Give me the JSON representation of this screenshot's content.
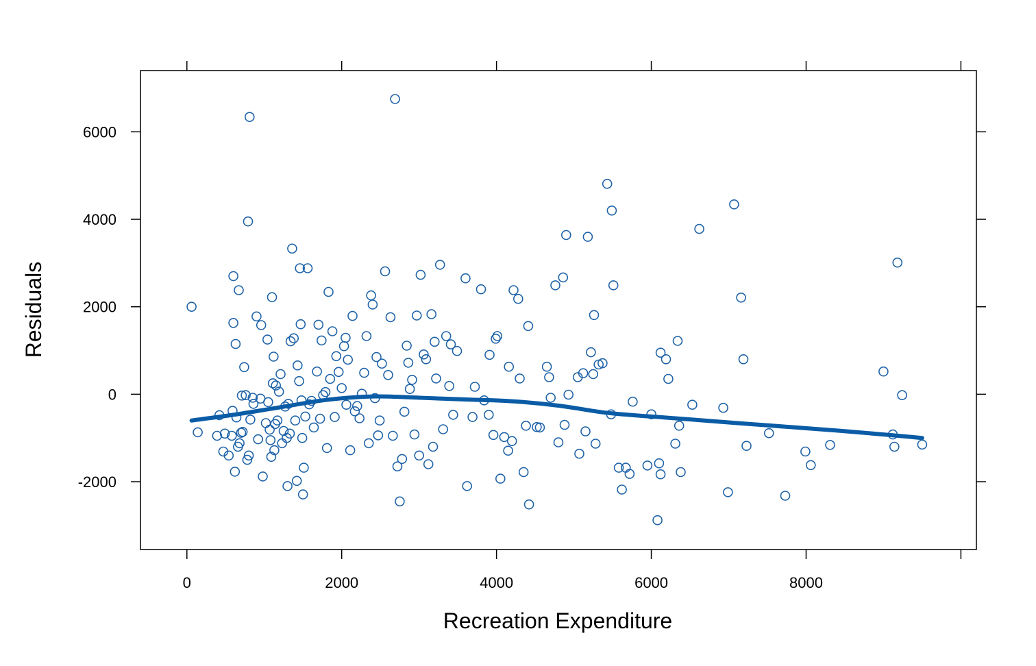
{
  "chart_data": {
    "type": "scatter",
    "title": "",
    "xlabel": "Recreation Expenditure",
    "ylabel": "Residuals",
    "xlim": [
      -600,
      10200
    ],
    "ylim": [
      -3550,
      7400
    ],
    "x_ticks": [
      0,
      2000,
      4000,
      6000,
      8000
    ],
    "x_tick_labels": [
      "0",
      "2000",
      "4000",
      "6000",
      "8000"
    ],
    "y_ticks": [
      -2000,
      0,
      2000,
      4000,
      6000
    ],
    "y_tick_labels": [
      "-2000",
      "0",
      "2000",
      "4000",
      "6000"
    ],
    "grid": false,
    "marker_color": "#1f63a8",
    "line_color": "#0b5ca6",
    "points": [
      [
        60,
        2000
      ],
      [
        140,
        -870
      ],
      [
        390,
        -950
      ],
      [
        420,
        -480
      ],
      [
        470,
        -1310
      ],
      [
        490,
        -900
      ],
      [
        540,
        -1400
      ],
      [
        580,
        -950
      ],
      [
        590,
        -380
      ],
      [
        600,
        1630
      ],
      [
        600,
        2700
      ],
      [
        620,
        -1770
      ],
      [
        630,
        1150
      ],
      [
        640,
        -530
      ],
      [
        660,
        -1200
      ],
      [
        670,
        2380
      ],
      [
        680,
        -1120
      ],
      [
        700,
        -880
      ],
      [
        710,
        -30
      ],
      [
        720,
        -860
      ],
      [
        740,
        620
      ],
      [
        760,
        -20
      ],
      [
        780,
        -1500
      ],
      [
        790,
        3950
      ],
      [
        800,
        -1400
      ],
      [
        810,
        6340
      ],
      [
        820,
        -580
      ],
      [
        850,
        -80
      ],
      [
        860,
        -220
      ],
      [
        900,
        1780
      ],
      [
        920,
        -1030
      ],
      [
        950,
        -100
      ],
      [
        960,
        1580
      ],
      [
        980,
        -1880
      ],
      [
        1020,
        -660
      ],
      [
        1040,
        1250
      ],
      [
        1050,
        -180
      ],
      [
        1070,
        -810
      ],
      [
        1080,
        -1050
      ],
      [
        1090,
        -1430
      ],
      [
        1100,
        2220
      ],
      [
        1110,
        250
      ],
      [
        1120,
        860
      ],
      [
        1130,
        -1280
      ],
      [
        1140,
        -680
      ],
      [
        1150,
        200
      ],
      [
        1170,
        -600
      ],
      [
        1190,
        60
      ],
      [
        1210,
        460
      ],
      [
        1230,
        -1120
      ],
      [
        1250,
        -840
      ],
      [
        1270,
        -280
      ],
      [
        1290,
        -1000
      ],
      [
        1300,
        -2100
      ],
      [
        1310,
        -220
      ],
      [
        1330,
        -900
      ],
      [
        1340,
        1210
      ],
      [
        1360,
        3330
      ],
      [
        1380,
        1280
      ],
      [
        1400,
        -600
      ],
      [
        1420,
        -1980
      ],
      [
        1430,
        660
      ],
      [
        1450,
        300
      ],
      [
        1460,
        2880
      ],
      [
        1470,
        1600
      ],
      [
        1480,
        -140
      ],
      [
        1490,
        -1000
      ],
      [
        1500,
        -2290
      ],
      [
        1510,
        -1680
      ],
      [
        1530,
        -510
      ],
      [
        1560,
        2880
      ],
      [
        1580,
        -230
      ],
      [
        1610,
        -150
      ],
      [
        1640,
        -760
      ],
      [
        1680,
        520
      ],
      [
        1700,
        1590
      ],
      [
        1720,
        -560
      ],
      [
        1740,
        1230
      ],
      [
        1760,
        -20
      ],
      [
        1790,
        50
      ],
      [
        1810,
        -1230
      ],
      [
        1830,
        2340
      ],
      [
        1850,
        350
      ],
      [
        1880,
        1440
      ],
      [
        1910,
        -520
      ],
      [
        1930,
        870
      ],
      [
        1960,
        510
      ],
      [
        2000,
        140
      ],
      [
        2030,
        1100
      ],
      [
        2050,
        1290
      ],
      [
        2060,
        -240
      ],
      [
        2080,
        790
      ],
      [
        2110,
        -1280
      ],
      [
        2140,
        1790
      ],
      [
        2170,
        -390
      ],
      [
        2200,
        -270
      ],
      [
        2230,
        -550
      ],
      [
        2260,
        10
      ],
      [
        2290,
        490
      ],
      [
        2320,
        1330
      ],
      [
        2350,
        -1120
      ],
      [
        2380,
        2260
      ],
      [
        2400,
        2050
      ],
      [
        2430,
        -90
      ],
      [
        2450,
        850
      ],
      [
        2470,
        -940
      ],
      [
        2490,
        -600
      ],
      [
        2520,
        700
      ],
      [
        2560,
        2810
      ],
      [
        2600,
        440
      ],
      [
        2630,
        1760
      ],
      [
        2660,
        -950
      ],
      [
        2690,
        6750
      ],
      [
        2720,
        -1650
      ],
      [
        2750,
        -2450
      ],
      [
        2780,
        -1480
      ],
      [
        2810,
        -400
      ],
      [
        2840,
        1110
      ],
      [
        2860,
        720
      ],
      [
        2880,
        120
      ],
      [
        2910,
        330
      ],
      [
        2940,
        -920
      ],
      [
        2970,
        1800
      ],
      [
        3000,
        -1400
      ],
      [
        3020,
        2730
      ],
      [
        3060,
        910
      ],
      [
        3090,
        800
      ],
      [
        3120,
        -1600
      ],
      [
        3160,
        1830
      ],
      [
        3180,
        -1200
      ],
      [
        3200,
        1200
      ],
      [
        3220,
        360
      ],
      [
        3270,
        2960
      ],
      [
        3310,
        -800
      ],
      [
        3350,
        1330
      ],
      [
        3390,
        190
      ],
      [
        3410,
        1140
      ],
      [
        3440,
        -470
      ],
      [
        3490,
        990
      ],
      [
        3600,
        2650
      ],
      [
        3620,
        -2100
      ],
      [
        3690,
        -520
      ],
      [
        3720,
        170
      ],
      [
        3800,
        2400
      ],
      [
        3840,
        -140
      ],
      [
        3900,
        -470
      ],
      [
        3910,
        900
      ],
      [
        3960,
        -930
      ],
      [
        3990,
        1270
      ],
      [
        4010,
        1330
      ],
      [
        4050,
        -1930
      ],
      [
        4100,
        -980
      ],
      [
        4150,
        -1290
      ],
      [
        4160,
        630
      ],
      [
        4200,
        -1070
      ],
      [
        4220,
        2380
      ],
      [
        4280,
        2180
      ],
      [
        4300,
        360
      ],
      [
        4350,
        -1780
      ],
      [
        4380,
        -720
      ],
      [
        4410,
        1560
      ],
      [
        4420,
        -2520
      ],
      [
        4520,
        -750
      ],
      [
        4560,
        -760
      ],
      [
        4650,
        630
      ],
      [
        4680,
        390
      ],
      [
        4700,
        -80
      ],
      [
        4760,
        2490
      ],
      [
        4800,
        -1100
      ],
      [
        4860,
        2670
      ],
      [
        4880,
        -700
      ],
      [
        4900,
        3640
      ],
      [
        4930,
        -10
      ],
      [
        5050,
        390
      ],
      [
        5070,
        -1360
      ],
      [
        5120,
        480
      ],
      [
        5150,
        -850
      ],
      [
        5180,
        3600
      ],
      [
        5220,
        960
      ],
      [
        5250,
        460
      ],
      [
        5260,
        1810
      ],
      [
        5280,
        -1130
      ],
      [
        5320,
        680
      ],
      [
        5370,
        710
      ],
      [
        5430,
        4810
      ],
      [
        5480,
        -460
      ],
      [
        5490,
        4200
      ],
      [
        5510,
        2490
      ],
      [
        5580,
        -1680
      ],
      [
        5620,
        -2180
      ],
      [
        5670,
        -1680
      ],
      [
        5720,
        -1820
      ],
      [
        5760,
        -170
      ],
      [
        5950,
        -1630
      ],
      [
        6000,
        -460
      ],
      [
        6080,
        -2880
      ],
      [
        6100,
        -1580
      ],
      [
        6120,
        -1830
      ],
      [
        6120,
        950
      ],
      [
        6190,
        800
      ],
      [
        6220,
        350
      ],
      [
        6310,
        -1130
      ],
      [
        6340,
        1220
      ],
      [
        6360,
        -720
      ],
      [
        6380,
        -1780
      ],
      [
        6530,
        -240
      ],
      [
        6620,
        3780
      ],
      [
        6930,
        -310
      ],
      [
        6990,
        -2240
      ],
      [
        7070,
        4340
      ],
      [
        7160,
        2210
      ],
      [
        7190,
        800
      ],
      [
        7230,
        -1180
      ],
      [
        7520,
        -890
      ],
      [
        7730,
        -2320
      ],
      [
        7990,
        -1310
      ],
      [
        8060,
        -1620
      ],
      [
        8310,
        -1160
      ],
      [
        9000,
        520
      ],
      [
        9120,
        -920
      ],
      [
        9140,
        -1200
      ],
      [
        9180,
        3010
      ],
      [
        9240,
        -20
      ],
      [
        9500,
        -1150
      ]
    ],
    "smooth_line": {
      "x": [
        60,
        600,
        1200,
        1800,
        2400,
        3000,
        3600,
        4200,
        4800,
        5400,
        6000,
        6600,
        7200,
        7800,
        8400,
        9000,
        9500
      ],
      "y": [
        -600,
        -470,
        -300,
        -130,
        -50,
        -80,
        -120,
        -160,
        -260,
        -420,
        -510,
        -590,
        -670,
        -750,
        -830,
        -920,
        -1000
      ]
    }
  }
}
